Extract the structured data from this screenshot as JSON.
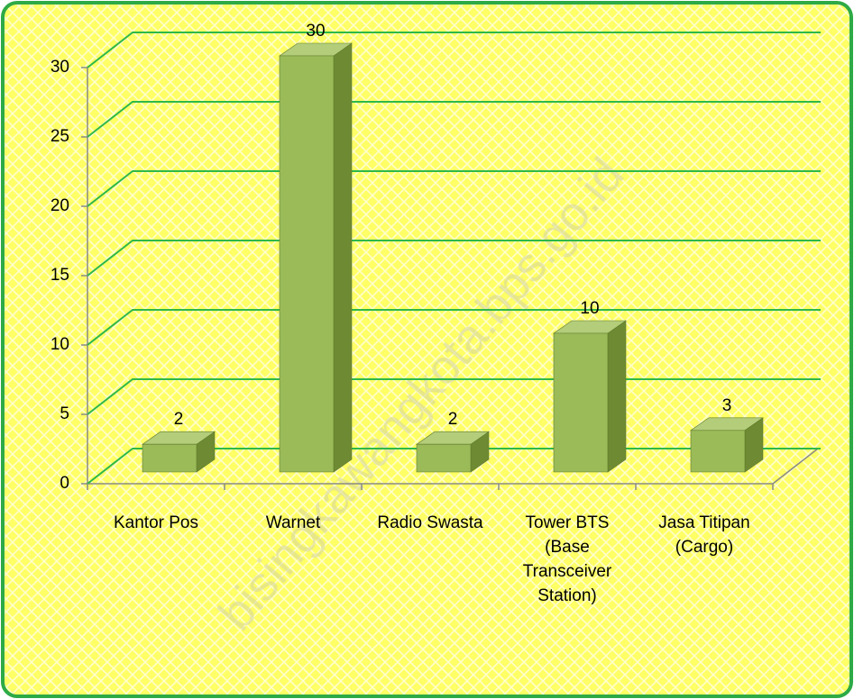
{
  "chart_data": {
    "type": "bar3d",
    "categories": [
      "Kantor Pos",
      "Warnet",
      "Radio Swasta",
      "Tower BTS (Base Transceiver Station)",
      "Jasa Titipan (Cargo)"
    ],
    "values": [
      2,
      30,
      2,
      10,
      3
    ],
    "color": "#9bbb59",
    "ylim": [
      0,
      30
    ],
    "yticks": [
      0,
      5,
      10,
      15,
      20,
      25,
      30
    ],
    "grid": true,
    "watermark": "bisingkawangkota.bps.go.id"
  }
}
